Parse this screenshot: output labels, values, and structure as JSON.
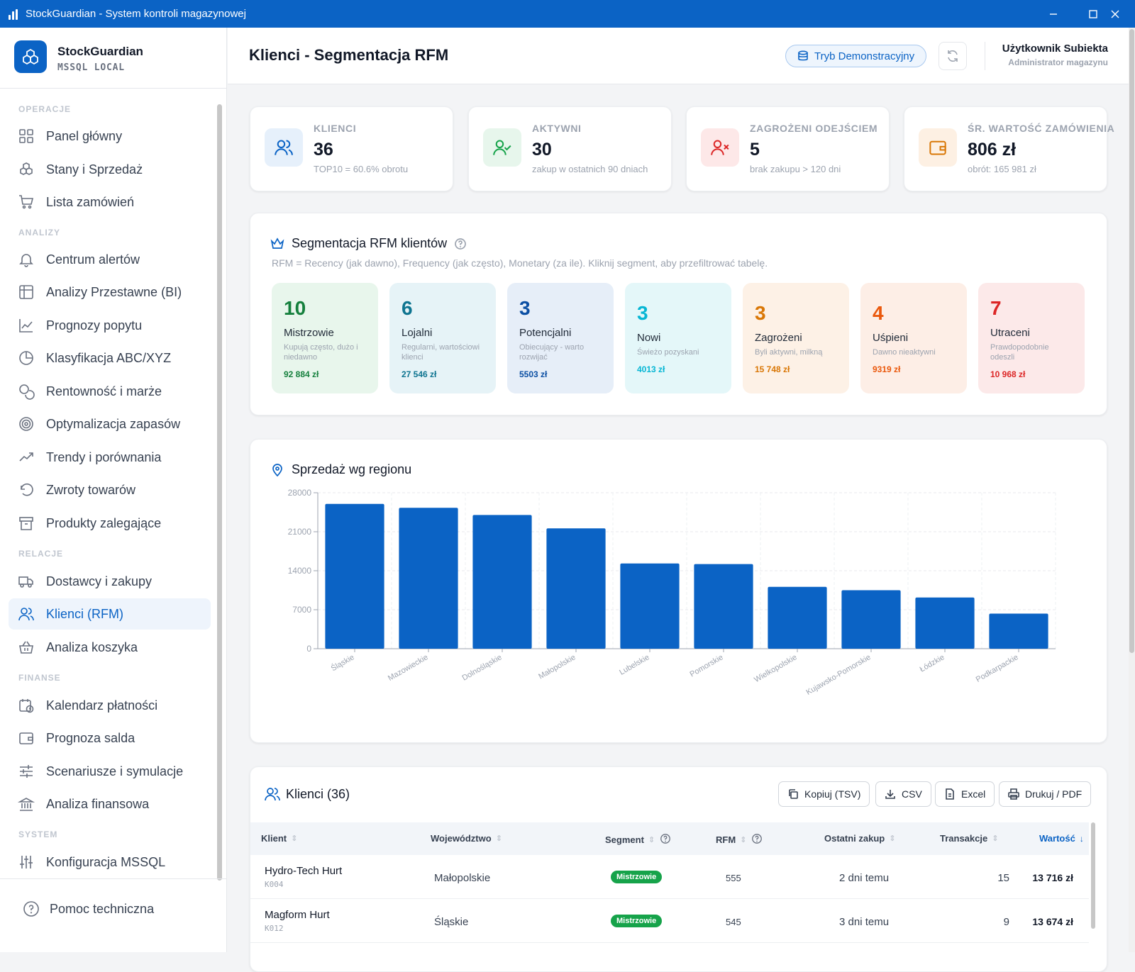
{
  "window": {
    "title": "StockGuardian - System kontroli magazynowej"
  },
  "brand": {
    "name": "StockGuardian",
    "sub": "MSSQL LOCAL"
  },
  "sidebar": {
    "sections": [
      {
        "label": "OPERACJE",
        "items": [
          {
            "label": "Panel główny",
            "icon": "grid-icon"
          },
          {
            "label": "Stany i Sprzedaż",
            "icon": "boxes-icon"
          },
          {
            "label": "Lista zamówień",
            "icon": "cart-icon"
          }
        ]
      },
      {
        "label": "ANALIZY",
        "items": [
          {
            "label": "Centrum alertów",
            "icon": "bell-icon"
          },
          {
            "label": "Analizy Przestawne (BI)",
            "icon": "table-icon"
          },
          {
            "label": "Prognozy popytu",
            "icon": "line-chart-icon"
          },
          {
            "label": "Klasyfikacja ABC/XYZ",
            "icon": "pie-icon"
          },
          {
            "label": "Rentowność i marże",
            "icon": "coins-icon"
          },
          {
            "label": "Optymalizacja zapasów",
            "icon": "target-icon"
          },
          {
            "label": "Trendy i porównania",
            "icon": "trend-icon"
          },
          {
            "label": "Zwroty towarów",
            "icon": "undo-icon"
          },
          {
            "label": "Produkty zalegające",
            "icon": "archive-icon"
          }
        ]
      },
      {
        "label": "RELACJE",
        "items": [
          {
            "label": "Dostawcy i zakupy",
            "icon": "truck-icon"
          },
          {
            "label": "Klienci (RFM)",
            "icon": "users-icon",
            "active": true
          },
          {
            "label": "Analiza koszyka",
            "icon": "basket-icon"
          }
        ]
      },
      {
        "label": "FINANSE",
        "items": [
          {
            "label": "Kalendarz płatności",
            "icon": "calendar-icon"
          },
          {
            "label": "Prognoza salda",
            "icon": "wallet-icon"
          },
          {
            "label": "Scenariusze i symulacje",
            "icon": "sliders-icon"
          },
          {
            "label": "Analiza finansowa",
            "icon": "bank-icon"
          }
        ]
      },
      {
        "label": "SYSTEM",
        "items": [
          {
            "label": "Konfiguracja MSSQL",
            "icon": "settings-sliders-icon"
          }
        ]
      }
    ],
    "help_label": "Pomoc techniczna"
  },
  "header": {
    "title": "Klienci - Segmentacja RFM",
    "demo_label": "Tryb Demonstracyjny",
    "user_name": "Użytkownik Subiekta",
    "user_role": "Administrator magazynu"
  },
  "kpis": [
    {
      "label": "KLIENCI",
      "value": "36",
      "sub": "TOP10 = 60.6% obrotu",
      "color": "#0b63c5",
      "bg": "#e6f0fb"
    },
    {
      "label": "AKTYWNI",
      "value": "30",
      "sub": "zakup w ostatnich 90 dniach",
      "color": "#16a34a",
      "bg": "#e7f6ec"
    },
    {
      "label": "ZAGROŻENI ODEJŚCIEM",
      "value": "5",
      "sub": "brak zakupu > 120 dni",
      "color": "#dc2626",
      "bg": "#fde8e8"
    },
    {
      "label": "ŚR. WARTOŚĆ ZAMÓWIENIA",
      "value": "806 zł",
      "sub": "obrót: 165 981 zł",
      "color": "#d97706",
      "bg": "#fdf0e3"
    }
  ],
  "rfm": {
    "title": "Segmentacja RFM klientów",
    "description": "RFM = Recency (jak dawno), Frequency (jak często), Monetary (za ile). Kliknij segment, aby przefiltrować tabelę.",
    "segments": [
      {
        "count": "10",
        "name": "Mistrzowie",
        "desc": "Kupują często, dużo i niedawno",
        "value": "92 884 zł",
        "color": "#15803d",
        "bg": "#e8f6ec"
      },
      {
        "count": "6",
        "name": "Lojalni",
        "desc": "Regularni, wartościowi klienci",
        "value": "27 546 zł",
        "color": "#0e7490",
        "bg": "#e6f3f7"
      },
      {
        "count": "3",
        "name": "Potencjalni",
        "desc": "Obiecujący - warto rozwijać",
        "value": "5503 zł",
        "color": "#0b4fa3",
        "bg": "#e6eef8"
      },
      {
        "count": "3",
        "name": "Nowi",
        "desc": "Świeżo pozyskani",
        "value": "4013 zł",
        "color": "#06b6d4",
        "bg": "#e4f7f9"
      },
      {
        "count": "3",
        "name": "Zagrożeni",
        "desc": "Byli aktywni, milkną",
        "value": "15 748 zł",
        "color": "#d97706",
        "bg": "#fdf1e6"
      },
      {
        "count": "4",
        "name": "Uśpieni",
        "desc": "Dawno nieaktywni",
        "value": "9319 zł",
        "color": "#ea580c",
        "bg": "#fdeee6"
      },
      {
        "count": "7",
        "name": "Utraceni",
        "desc": "Prawdopodobnie odeszli",
        "value": "10 968 zł",
        "color": "#dc2626",
        "bg": "#fce9e9"
      }
    ]
  },
  "region": {
    "title": "Sprzedaż wg regionu"
  },
  "chart_data": {
    "type": "bar",
    "categories": [
      "Śląskie",
      "Mazowieckie",
      "Dolnośląskie",
      "Małopolskie",
      "Lubelskie",
      "Pomorskie",
      "Wielkopolskie",
      "Kujawsko-Pomorskie",
      "Łódzkie",
      "Podkarpackie"
    ],
    "values": [
      26000,
      25300,
      24000,
      21600,
      15300,
      15200,
      11100,
      10500,
      9200,
      6300
    ],
    "ylim": [
      0,
      28000
    ],
    "yticks": [
      "0",
      "7000",
      "14000",
      "21000",
      "28000"
    ],
    "grid": true,
    "color": "#0b63c5"
  },
  "clients": {
    "title": "Klienci (36)",
    "buttons": [
      "Kopiuj (TSV)",
      "CSV",
      "Excel",
      "Drukuj / PDF"
    ],
    "columns": [
      "Klient",
      "Województwo",
      "Segment",
      "RFM",
      "Ostatni zakup",
      "Transakcje",
      "Wartość"
    ],
    "rows": [
      {
        "name": "Hydro-Tech Hurt",
        "code": "K004",
        "region": "Małopolskie",
        "segment": "Mistrzowie",
        "rfm": "555",
        "last": "2 dni temu",
        "tx": "15",
        "value": "13 716 zł"
      },
      {
        "name": "Magform Hurt",
        "code": "K012",
        "region": "Śląskie",
        "segment": "Mistrzowie",
        "rfm": "545",
        "last": "3 dni temu",
        "tx": "9",
        "value": "13 674 zł"
      }
    ]
  }
}
